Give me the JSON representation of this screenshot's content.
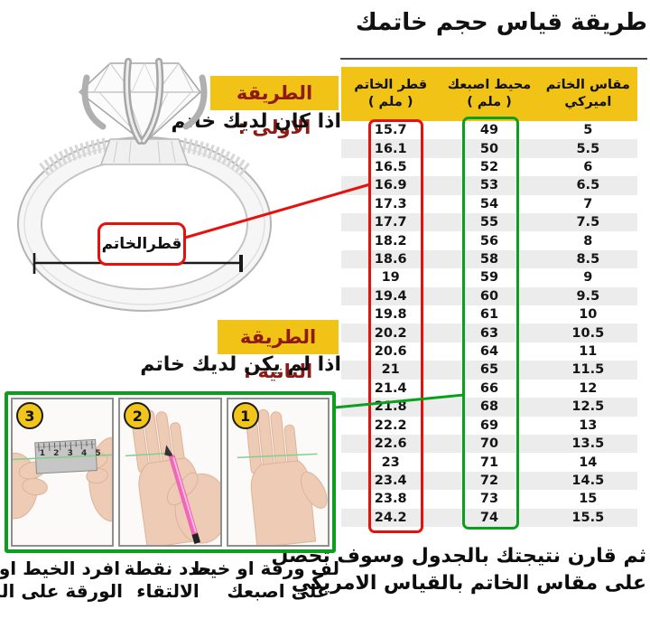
{
  "title": "طريقة قياس حجم خاتمك",
  "table": {
    "headers": [
      {
        "line1": "قطر الخاتم",
        "line2": "( ملم )"
      },
      {
        "line1": "محيط اصبعك",
        "line2": "( ملم )"
      },
      {
        "line1": "مقاس الخاتم",
        "line2": "اميركي"
      }
    ],
    "rows": [
      [
        "15.7",
        "49",
        "5"
      ],
      [
        "16.1",
        "50",
        "5.5"
      ],
      [
        "16.5",
        "52",
        "6"
      ],
      [
        "16.9",
        "53",
        "6.5"
      ],
      [
        "17.3",
        "54",
        "7"
      ],
      [
        "17.7",
        "55",
        "7.5"
      ],
      [
        "18.2",
        "56",
        "8"
      ],
      [
        "18.6",
        "58",
        "8.5"
      ],
      [
        "19",
        "59",
        "9"
      ],
      [
        "19.4",
        "60",
        "9.5"
      ],
      [
        "19.8",
        "61",
        "10"
      ],
      [
        "20.2",
        "63",
        "10.5"
      ],
      [
        "20.6",
        "64",
        "11"
      ],
      [
        "21",
        "65",
        "11.5"
      ],
      [
        "21.4",
        "66",
        "12"
      ],
      [
        "21.8",
        "68",
        "12.5"
      ],
      [
        "22.2",
        "69",
        "13"
      ],
      [
        "22.6",
        "70",
        "13.5"
      ],
      [
        "23",
        "71",
        "14"
      ],
      [
        "23.4",
        "72",
        "14.5"
      ],
      [
        "23.8",
        "73",
        "15"
      ],
      [
        "24.2",
        "74",
        "15.5"
      ]
    ]
  },
  "method1": {
    "label": "الطريقة الاولى :",
    "sub": "اذا كان لديك خاتم"
  },
  "method2": {
    "label": "الطريقة الثانية :",
    "sub": "اذا لم يكن لديك خاتم"
  },
  "diameter_label": "قطرالخاتم",
  "steps": [
    {
      "num": "1",
      "caption1": "لف ورقة او خيط",
      "caption2": "على اصبعك"
    },
    {
      "num": "2",
      "caption1": "حدد نقطة",
      "caption2": "الالتقاء"
    },
    {
      "num": "3",
      "caption1": "افرد الخيط او",
      "caption2": "الورقة على المسطرة"
    }
  ],
  "ruler_numbers": "1 2 3 4 5",
  "footer": {
    "line1": "ثم قارن نتيجتك بالجدول وسوف تحصل",
    "line2": "على مقاس الخاتم بالقياس الامريكي"
  },
  "colors": {
    "highlight_yellow": "#f0c316",
    "accent_red": "#e8100c",
    "accent_green": "#0c9e1d",
    "method_text_maroon": "#8e1a15",
    "alt_row_gray": "#ececec"
  }
}
